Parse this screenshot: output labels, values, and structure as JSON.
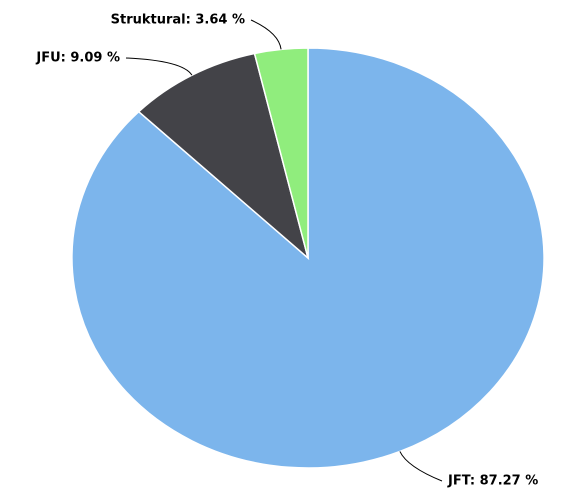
{
  "chart_data": {
    "type": "pie",
    "values": [
      87.27,
      9.09,
      3.64
    ],
    "value_labels": [
      "JFT: 87.27 %",
      "JFU: 9.09 %",
      "Struktural: 3.64 %"
    ],
    "colors": [
      "#7cb5ec",
      "#434348",
      "#90ed7d"
    ]
  }
}
